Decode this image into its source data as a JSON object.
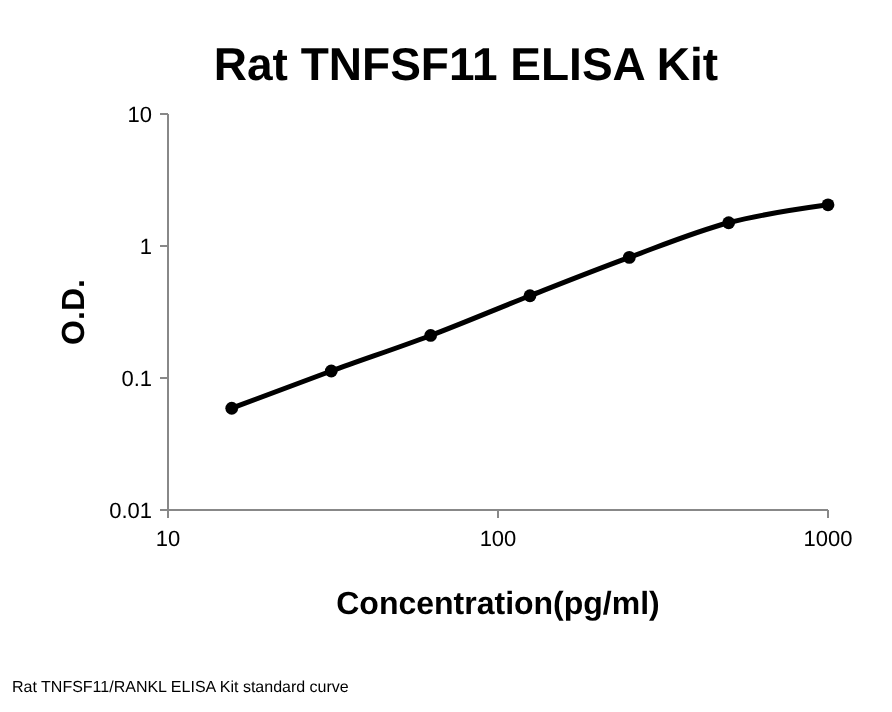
{
  "chart_data": {
    "type": "line",
    "title": "Rat TNFSF11 ELISA Kit",
    "xlabel": "Concentration(pg/ml)",
    "ylabel": "O.D.",
    "x": [
      15.6,
      31.25,
      62.5,
      125,
      250,
      500,
      1000
    ],
    "series": [
      {
        "color": "#000000",
        "values": [
          0.059,
          0.113,
          0.21,
          0.42,
          0.82,
          1.5,
          2.05
        ]
      }
    ],
    "log": "xy",
    "xlim": [
      10,
      1000
    ],
    "ylim": [
      0.01,
      10
    ],
    "xticks": [
      10,
      100,
      1000
    ],
    "yticks": [
      0.01,
      0.1,
      1,
      10
    ],
    "marker": "circle",
    "line_style": "solid",
    "grid": false,
    "annotations": [
      "Rat TNFSF11/RANKL ELISA Kit standard curve"
    ]
  }
}
